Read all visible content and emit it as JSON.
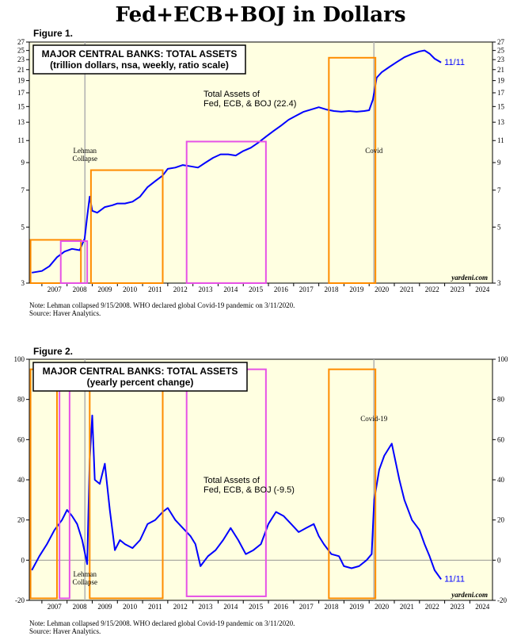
{
  "title": "Fed+ECB+BOJ in Dollars",
  "colors": {
    "plot_bg": "#ffffe1",
    "line": "#0000ff",
    "orange_box": "#ff8c00",
    "magenta_box": "#e652e6",
    "event_line": "#b0b0b0",
    "zero_line": "#888888"
  },
  "chart_data": [
    {
      "figure_label": "Figure 1.",
      "type": "line",
      "title": "MAJOR CENTRAL BANKS: TOTAL ASSETS",
      "subtitle": "(trillion dollars, nsa, weekly, ratio scale)",
      "series_label": "Total Assets of",
      "series_label_2": "Fed, ECB, & BOJ (22.4)",
      "end_label": "11/11",
      "scale": "log",
      "ylim": [
        3,
        27
      ],
      "yticks": [
        3,
        5,
        7,
        9,
        11,
        13,
        15,
        17,
        19,
        21,
        23,
        25,
        27
      ],
      "xlim": [
        2006.5,
        2024.9
      ],
      "xticks": [
        "2007",
        "2008",
        "2009",
        "2010",
        "2011",
        "2012",
        "2013",
        "2014",
        "2015",
        "2016",
        "2017",
        "2018",
        "2019",
        "2020",
        "2021",
        "2022",
        "2023",
        "2024"
      ],
      "events": [
        {
          "x": 2008.71,
          "label": "Lehman",
          "label2": "Collapse"
        },
        {
          "x": 2020.19,
          "label": "Covid",
          "label2": ""
        }
      ],
      "boxes": [
        {
          "color": "orange",
          "x0": 2006.55,
          "x1": 2008.55,
          "y0": 3.0,
          "y1": 4.45
        },
        {
          "color": "magenta",
          "x0": 2007.75,
          "x1": 2008.8,
          "y0": 3.0,
          "y1": 4.4
        },
        {
          "color": "orange",
          "x0": 2008.95,
          "x1": 2011.8,
          "y0": 3.0,
          "y1": 8.4
        },
        {
          "color": "magenta",
          "x0": 2012.75,
          "x1": 2015.9,
          "y0": 3.0,
          "y1": 10.9
        },
        {
          "color": "orange",
          "x0": 2018.4,
          "x1": 2020.25,
          "y0": 3.0,
          "y1": 23.4
        }
      ],
      "x": [
        2006.6,
        2007.0,
        2007.3,
        2007.6,
        2007.9,
        2008.2,
        2008.5,
        2008.7,
        2008.8,
        2008.9,
        2009.0,
        2009.2,
        2009.5,
        2009.8,
        2010.0,
        2010.3,
        2010.6,
        2010.9,
        2011.2,
        2011.5,
        2011.8,
        2012.0,
        2012.3,
        2012.6,
        2012.9,
        2013.2,
        2013.5,
        2013.8,
        2014.1,
        2014.4,
        2014.7,
        2015.0,
        2015.3,
        2015.6,
        2015.9,
        2016.2,
        2016.5,
        2016.8,
        2017.1,
        2017.4,
        2017.7,
        2018.0,
        2018.3,
        2018.6,
        2018.9,
        2019.2,
        2019.5,
        2019.8,
        2020.0,
        2020.15,
        2020.3,
        2020.5,
        2020.8,
        2021.1,
        2021.4,
        2021.7,
        2022.0,
        2022.2,
        2022.4,
        2022.6,
        2022.86
      ],
      "values": [
        3.3,
        3.35,
        3.5,
        3.8,
        4.0,
        4.1,
        4.05,
        4.5,
        5.5,
        6.6,
        5.8,
        5.7,
        6.0,
        6.1,
        6.2,
        6.2,
        6.3,
        6.6,
        7.2,
        7.6,
        8.0,
        8.5,
        8.6,
        8.8,
        8.7,
        8.6,
        9.0,
        9.4,
        9.7,
        9.7,
        9.6,
        10.0,
        10.3,
        10.8,
        11.4,
        12.0,
        12.6,
        13.3,
        13.8,
        14.3,
        14.6,
        14.9,
        14.6,
        14.4,
        14.3,
        14.4,
        14.3,
        14.4,
        14.5,
        16.0,
        19.5,
        20.5,
        21.5,
        22.5,
        23.5,
        24.2,
        24.8,
        25.0,
        24.3,
        23.2,
        22.4
      ]
    },
    {
      "figure_label": "Figure 2.",
      "type": "line",
      "title": "MAJOR CENTRAL BANKS: TOTAL ASSETS",
      "subtitle": "(yearly percent change)",
      "series_label": "Total Assets of",
      "series_label_2": "Fed, ECB, & BOJ (-9.5)",
      "end_label": "11/11",
      "ylim": [
        -20,
        100
      ],
      "yticks": [
        -20,
        0,
        20,
        40,
        60,
        80,
        100
      ],
      "xlim": [
        2006.5,
        2024.9
      ],
      "xticks": [
        "2007",
        "2008",
        "2009",
        "2010",
        "2011",
        "2012",
        "2013",
        "2014",
        "2015",
        "2016",
        "2017",
        "2018",
        "2019",
        "2020",
        "2021",
        "2022",
        "2023",
        "2024"
      ],
      "events": [
        {
          "x": 2008.71,
          "label": "Lehman",
          "label2": "Collapse"
        },
        {
          "x": 2020.19,
          "label": "Covid-19",
          "label2": ""
        }
      ],
      "boxes": [
        {
          "color": "orange",
          "x0": 2006.55,
          "x1": 2007.6,
          "y0": -19,
          "y1": 95
        },
        {
          "color": "magenta",
          "x0": 2007.7,
          "x1": 2008.1,
          "y0": -19,
          "y1": 95
        },
        {
          "color": "orange",
          "x0": 2008.9,
          "x1": 2011.8,
          "y0": -19,
          "y1": 95
        },
        {
          "color": "magenta",
          "x0": 2012.75,
          "x1": 2015.9,
          "y0": -18,
          "y1": 95
        },
        {
          "color": "orange",
          "x0": 2018.4,
          "x1": 2020.25,
          "y0": -19,
          "y1": 95
        }
      ],
      "x": [
        2006.6,
        2006.9,
        2007.2,
        2007.5,
        2007.8,
        2008.0,
        2008.2,
        2008.4,
        2008.6,
        2008.8,
        2008.9,
        2009.0,
        2009.1,
        2009.3,
        2009.5,
        2009.7,
        2009.9,
        2010.1,
        2010.3,
        2010.6,
        2010.9,
        2011.2,
        2011.5,
        2011.8,
        2012.0,
        2012.3,
        2012.6,
        2012.9,
        2013.1,
        2013.3,
        2013.6,
        2013.9,
        2014.2,
        2014.5,
        2014.8,
        2015.1,
        2015.4,
        2015.7,
        2016.0,
        2016.3,
        2016.6,
        2016.9,
        2017.2,
        2017.5,
        2017.8,
        2018.0,
        2018.2,
        2018.5,
        2018.8,
        2019.0,
        2019.3,
        2019.6,
        2019.9,
        2020.1,
        2020.2,
        2020.4,
        2020.6,
        2020.9,
        2021.2,
        2021.4,
        2021.7,
        2022.0,
        2022.2,
        2022.4,
        2022.6,
        2022.86
      ],
      "values": [
        -5,
        2,
        8,
        15,
        20,
        25,
        22,
        18,
        10,
        -2,
        50,
        72,
        40,
        38,
        48,
        25,
        5,
        10,
        8,
        6,
        10,
        18,
        20,
        24,
        26,
        20,
        16,
        12,
        8,
        -3,
        2,
        5,
        10,
        16,
        10,
        3,
        5,
        8,
        18,
        24,
        22,
        18,
        14,
        16,
        18,
        12,
        8,
        3,
        2,
        -3,
        -4,
        -3,
        0,
        3,
        30,
        45,
        52,
        58,
        40,
        30,
        20,
        15,
        8,
        2,
        -5,
        -9.5
      ]
    }
  ],
  "notes": {
    "fig1_note": "Note: Lehman collapsed 9/15/2008. WHO declared global Covid-19 pandemic on 3/11/2020.",
    "fig1_source": "Source: Haver Analytics.",
    "fig2_note": "Note: Lehman collapsed 9/15/2008. WHO declared global Covid-19 pandemic on 3/11/2020.",
    "fig2_source": "Source: Haver Analytics.",
    "brand": "yardeni.com"
  }
}
